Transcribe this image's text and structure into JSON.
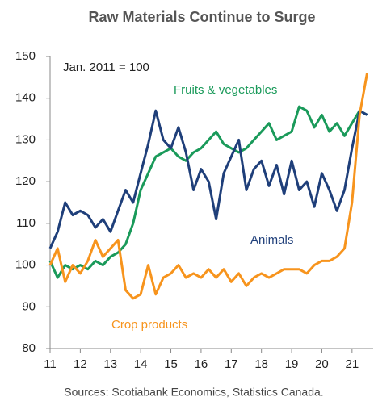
{
  "chart_data": {
    "type": "line",
    "title": "Raw Materials Continue to Surge",
    "annotation": "Jan. 2011 = 100",
    "source": "Sources: Scotiabank Economics, Statistics Canada.",
    "x": [
      11,
      11.25,
      11.5,
      11.75,
      12,
      12.25,
      12.5,
      12.75,
      13,
      13.25,
      13.5,
      13.75,
      14,
      14.25,
      14.5,
      14.75,
      15,
      15.25,
      15.5,
      15.75,
      16,
      16.25,
      16.5,
      16.75,
      17,
      17.25,
      17.5,
      17.75,
      18,
      18.25,
      18.5,
      18.75,
      19,
      19.25,
      19.5,
      19.75,
      20,
      20.25,
      20.5,
      20.75,
      21,
      21.25,
      21.5
    ],
    "series": [
      {
        "name": "Fruits & vegetables",
        "color": "#1a9a5a",
        "values": [
          101,
          97,
          100,
          99,
          100,
          99,
          101,
          100,
          102,
          103,
          105,
          110,
          118,
          122,
          126,
          127,
          128,
          126,
          125,
          127,
          128,
          130,
          132,
          129,
          128,
          127,
          128,
          130,
          132,
          134,
          130,
          131,
          132,
          138,
          137,
          133,
          136,
          132,
          134,
          131,
          134,
          137,
          136
        ]
      },
      {
        "name": "Animals",
        "color": "#1f3f7a",
        "values": [
          104,
          108,
          115,
          112,
          113,
          112,
          109,
          111,
          108,
          113,
          118,
          115,
          122,
          129,
          137,
          130,
          128,
          133,
          127,
          118,
          123,
          120,
          111,
          122,
          126,
          130,
          118,
          123,
          125,
          119,
          124,
          117,
          125,
          118,
          120,
          114,
          122,
          118,
          113,
          118,
          128,
          137,
          136
        ]
      },
      {
        "name": "Crop products",
        "color": "#f7941d",
        "values": [
          100,
          104,
          96,
          100,
          98,
          101,
          106,
          102,
          104,
          106,
          94,
          92,
          93,
          100,
          93,
          97,
          98,
          100,
          97,
          98,
          97,
          99,
          97,
          99,
          96,
          98,
          95,
          97,
          98,
          97,
          98,
          99,
          99,
          99,
          98,
          100,
          101,
          101,
          102,
          104,
          115,
          136,
          146
        ]
      }
    ],
    "xlim": [
      11,
      21.7
    ],
    "xticks": [
      11,
      12,
      13,
      14,
      15,
      16,
      17,
      18,
      19,
      20,
      21
    ],
    "ylim": [
      80,
      150
    ],
    "yticks": [
      80,
      90,
      100,
      110,
      120,
      130,
      140,
      150
    ],
    "grid": false
  }
}
